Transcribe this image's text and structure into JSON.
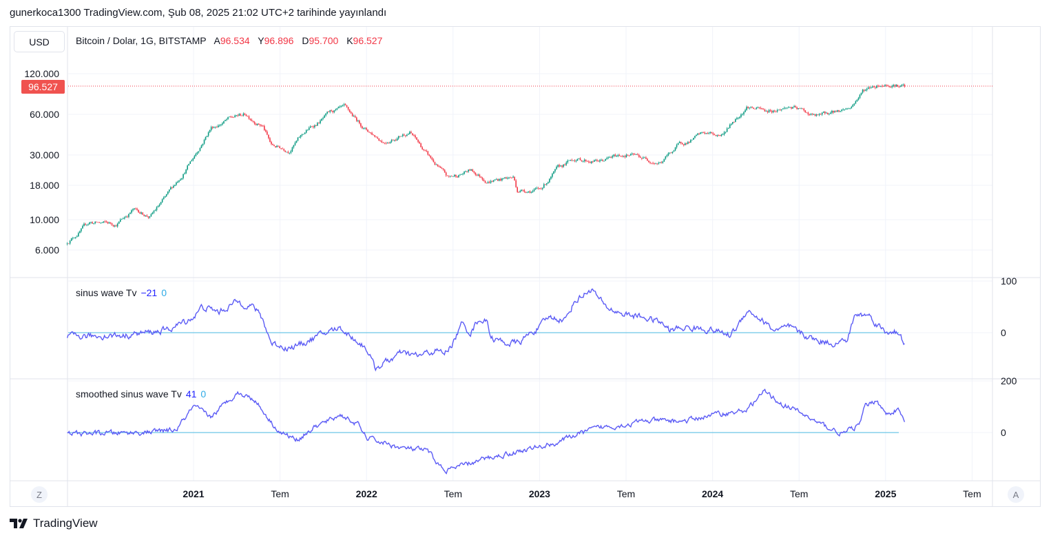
{
  "published": "gunerkoca1300 TradingView.com, Şub 08, 2025 21:02 UTC+2 tarihinde yayınlandı",
  "currency_button": "USD",
  "symbol": {
    "title": "Bitcoin / Dolar, 1G, BITSTAMP",
    "open_label": "A",
    "open": "96.534",
    "high_label": "Y",
    "high": "96.896",
    "low_label": "D",
    "low": "95.700",
    "close_label": "K",
    "close": "96.527"
  },
  "last_price_tag": "96.527",
  "price_axis_labels": [
    "120.000",
    "60.000",
    "30.000",
    "18.000",
    "10.000",
    "6.000"
  ],
  "indicators": [
    {
      "name": "sinus wave Tv",
      "value": "−21",
      "zero": "0",
      "axis_labels": [
        "100",
        "0"
      ]
    },
    {
      "name": "smoothed sinus wave Tv",
      "value": "41",
      "zero": "0",
      "axis_labels": [
        "200",
        "0"
      ]
    }
  ],
  "time_axis": [
    {
      "label": "2021",
      "bold": true
    },
    {
      "label": "Tem",
      "bold": false
    },
    {
      "label": "2022",
      "bold": true
    },
    {
      "label": "Tem",
      "bold": false
    },
    {
      "label": "2023",
      "bold": true
    },
    {
      "label": "Tem",
      "bold": false
    },
    {
      "label": "2024",
      "bold": true
    },
    {
      "label": "Tem",
      "bold": false
    },
    {
      "label": "2025",
      "bold": true
    },
    {
      "label": "Tem",
      "bold": false
    }
  ],
  "left_scale_button": "Z",
  "auto_scale_button": "A",
  "brand": "TradingView",
  "colors": {
    "up": "#089981",
    "down": "#f23645",
    "line": "#5b5bf5",
    "zero": "#6cc5e6",
    "grid": "#f0f3fa"
  },
  "chart_data": {
    "type": "candlestick",
    "scale": "log",
    "price_keypoints": [
      [
        2020.27,
        6800
      ],
      [
        2020.4,
        9500
      ],
      [
        2020.55,
        9200
      ],
      [
        2020.65,
        11800
      ],
      [
        2020.75,
        10500
      ],
      [
        2020.85,
        15000
      ],
      [
        2021.0,
        29000
      ],
      [
        2021.1,
        48000
      ],
      [
        2021.2,
        55000
      ],
      [
        2021.3,
        60000
      ],
      [
        2021.4,
        50000
      ],
      [
        2021.45,
        35000
      ],
      [
        2021.55,
        33000
      ],
      [
        2021.65,
        45000
      ],
      [
        2021.8,
        62000
      ],
      [
        2021.87,
        65000
      ],
      [
        2022.0,
        46000
      ],
      [
        2022.1,
        38000
      ],
      [
        2022.25,
        45000
      ],
      [
        2022.35,
        30000
      ],
      [
        2022.47,
        20000
      ],
      [
        2022.6,
        23000
      ],
      [
        2022.7,
        19500
      ],
      [
        2022.85,
        20500
      ],
      [
        2022.87,
        16500
      ],
      [
        2023.0,
        16600
      ],
      [
        2023.1,
        23000
      ],
      [
        2023.2,
        28000
      ],
      [
        2023.35,
        27000
      ],
      [
        2023.5,
        30500
      ],
      [
        2023.7,
        26500
      ],
      [
        2023.8,
        35000
      ],
      [
        2023.95,
        43000
      ],
      [
        2024.05,
        42000
      ],
      [
        2024.2,
        70000
      ],
      [
        2024.3,
        63000
      ],
      [
        2024.45,
        68000
      ],
      [
        2024.6,
        58000
      ],
      [
        2024.7,
        62000
      ],
      [
        2024.8,
        68000
      ],
      [
        2024.87,
        90000
      ],
      [
        2024.95,
        100000
      ],
      [
        2025.05,
        102000
      ],
      [
        2025.11,
        96527
      ]
    ],
    "sinus_keypoints": [
      [
        2020.27,
        -8
      ],
      [
        2020.6,
        -5
      ],
      [
        2020.85,
        5
      ],
      [
        2021.0,
        30
      ],
      [
        2021.05,
        50
      ],
      [
        2021.15,
        40
      ],
      [
        2021.25,
        60
      ],
      [
        2021.35,
        50
      ],
      [
        2021.4,
        25
      ],
      [
        2021.45,
        -20
      ],
      [
        2021.55,
        -30
      ],
      [
        2021.6,
        -25
      ],
      [
        2021.7,
        -10
      ],
      [
        2021.8,
        5
      ],
      [
        2021.85,
        10
      ],
      [
        2021.9,
        -5
      ],
      [
        2022.0,
        -30
      ],
      [
        2022.05,
        -69
      ],
      [
        2022.2,
        -40
      ],
      [
        2022.3,
        -45
      ],
      [
        2022.4,
        -35
      ],
      [
        2022.45,
        -40
      ],
      [
        2022.5,
        -20
      ],
      [
        2022.55,
        17
      ],
      [
        2022.6,
        0
      ],
      [
        2022.65,
        27
      ],
      [
        2022.7,
        20
      ],
      [
        2022.72,
        -10
      ],
      [
        2022.8,
        -20
      ],
      [
        2022.88,
        -20
      ],
      [
        2022.95,
        0
      ],
      [
        2023.0,
        10
      ],
      [
        2023.05,
        30
      ],
      [
        2023.15,
        25
      ],
      [
        2023.2,
        60
      ],
      [
        2023.3,
        85
      ],
      [
        2023.38,
        50
      ],
      [
        2023.45,
        40
      ],
      [
        2023.5,
        35
      ],
      [
        2023.6,
        30
      ],
      [
        2023.7,
        20
      ],
      [
        2023.75,
        5
      ],
      [
        2023.85,
        10
      ],
      [
        2024.0,
        5
      ],
      [
        2024.1,
        -5
      ],
      [
        2024.15,
        15
      ],
      [
        2024.2,
        45
      ],
      [
        2024.3,
        20
      ],
      [
        2024.35,
        5
      ],
      [
        2024.45,
        10
      ],
      [
        2024.5,
        0
      ],
      [
        2024.6,
        -15
      ],
      [
        2024.7,
        -20
      ],
      [
        2024.78,
        -15
      ],
      [
        2024.82,
        33
      ],
      [
        2024.9,
        35
      ],
      [
        2025.0,
        0
      ],
      [
        2025.05,
        5
      ],
      [
        2025.11,
        -21
      ]
    ],
    "smoothed_keypoints": [
      [
        2020.27,
        -5
      ],
      [
        2020.7,
        0
      ],
      [
        2020.9,
        10
      ],
      [
        2021.0,
        100
      ],
      [
        2021.1,
        60
      ],
      [
        2021.25,
        155
      ],
      [
        2021.35,
        130
      ],
      [
        2021.45,
        40
      ],
      [
        2021.5,
        0
      ],
      [
        2021.6,
        -27
      ],
      [
        2021.7,
        20
      ],
      [
        2021.85,
        69
      ],
      [
        2021.95,
        30
      ],
      [
        2022.0,
        -20
      ],
      [
        2022.1,
        -40
      ],
      [
        2022.2,
        -60
      ],
      [
        2022.35,
        -70
      ],
      [
        2022.45,
        -149
      ],
      [
        2022.7,
        -99
      ],
      [
        2022.9,
        -70
      ],
      [
        2023.1,
        -40
      ],
      [
        2023.2,
        -10
      ],
      [
        2023.35,
        20
      ],
      [
        2023.5,
        30
      ],
      [
        2023.6,
        45
      ],
      [
        2023.85,
        45
      ],
      [
        2024.0,
        70
      ],
      [
        2024.15,
        80
      ],
      [
        2024.2,
        90
      ],
      [
        2024.3,
        160
      ],
      [
        2024.4,
        110
      ],
      [
        2024.5,
        80
      ],
      [
        2024.6,
        40
      ],
      [
        2024.7,
        10
      ],
      [
        2024.75,
        -5
      ],
      [
        2024.85,
        30
      ],
      [
        2024.88,
        100
      ],
      [
        2024.95,
        128
      ],
      [
        2025.0,
        70
      ],
      [
        2025.07,
        90
      ],
      [
        2025.11,
        41
      ]
    ]
  }
}
